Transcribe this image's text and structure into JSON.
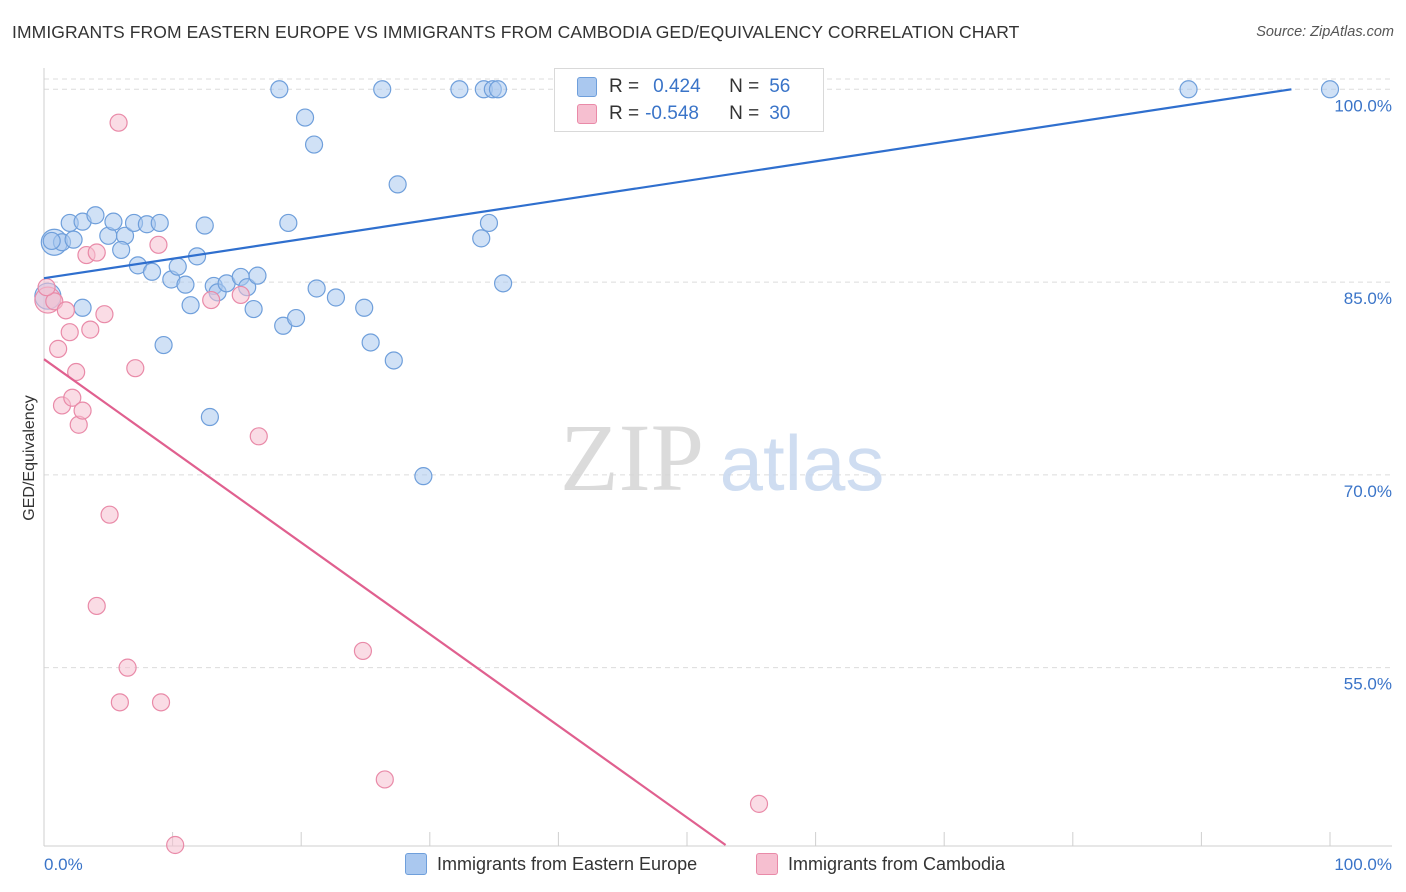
{
  "header": {
    "title": "IMMIGRANTS FROM EASTERN EUROPE VS IMMIGRANTS FROM CAMBODIA GED/EQUIVALENCY CORRELATION CHART",
    "source": "Source: ZipAtlas.com"
  },
  "watermark": {
    "zip": "ZIP",
    "atlas": "atlas"
  },
  "legend": {
    "rows": [
      {
        "r_label": "R =",
        "r_value": "0.424",
        "n_label": "N =",
        "n_value": "56"
      },
      {
        "r_label": "R =",
        "r_value": "-0.548",
        "n_label": "N =",
        "n_value": "30"
      }
    ]
  },
  "bottom_legend": {
    "series_a": "Immigrants from Eastern Europe",
    "series_b": "Immigrants from Cambodia"
  },
  "colors": {
    "blue_fill": "#aac8ef",
    "blue_stroke": "#6f9fdb",
    "blue_line": "#2f6fce",
    "pink_fill": "#f6bfd0",
    "pink_stroke": "#e98aa8",
    "pink_line": "#e0608f",
    "tick_text": "#3a74c8",
    "grid": "#dcdcdc"
  },
  "chart_data": {
    "type": "scatter",
    "title": "IMMIGRANTS FROM EASTERN EUROPE VS IMMIGRANTS FROM CAMBODIA GED/EQUIVALENCY CORRELATION CHART",
    "xlabel": "",
    "ylabel": "GED/Equivalency",
    "xlim": [
      0,
      100
    ],
    "ylim": [
      41.2,
      101.5
    ],
    "x_tick_labels": [
      {
        "value": 0,
        "label": "0.0%"
      },
      {
        "value": 100,
        "label": "100.0%"
      }
    ],
    "y_tick_labels": [
      {
        "value": 100,
        "label": "100.0%"
      },
      {
        "value": 85,
        "label": "85.0%"
      },
      {
        "value": 70,
        "label": "70.0%"
      },
      {
        "value": 55,
        "label": "55.0%"
      }
    ],
    "legend_position": "top-center",
    "series": [
      {
        "name": "Immigrants from Eastern Europe",
        "R": 0.424,
        "N": 56,
        "trend": {
          "x": [
            0,
            97
          ],
          "y": [
            85.3,
            100.0
          ]
        },
        "points": [
          {
            "x": 0.3,
            "y": 83.9,
            "big": true
          },
          {
            "x": 0.8,
            "y": 88.1,
            "big": true
          },
          {
            "x": 1.4,
            "y": 88.1
          },
          {
            "x": 2.3,
            "y": 88.3
          },
          {
            "x": 3.0,
            "y": 83.0
          },
          {
            "x": 2.0,
            "y": 89.6
          },
          {
            "x": 3.0,
            "y": 89.7
          },
          {
            "x": 4.0,
            "y": 90.2
          },
          {
            "x": 5.0,
            "y": 88.6
          },
          {
            "x": 5.4,
            "y": 89.7
          },
          {
            "x": 6.3,
            "y": 88.6
          },
          {
            "x": 6.0,
            "y": 87.5
          },
          {
            "x": 7.0,
            "y": 89.6
          },
          {
            "x": 8.0,
            "y": 89.5
          },
          {
            "x": 9.0,
            "y": 89.6
          },
          {
            "x": 7.3,
            "y": 86.3
          },
          {
            "x": 8.4,
            "y": 85.8
          },
          {
            "x": 9.9,
            "y": 85.2
          },
          {
            "x": 10.4,
            "y": 86.2
          },
          {
            "x": 11.0,
            "y": 84.8
          },
          {
            "x": 11.4,
            "y": 83.2
          },
          {
            "x": 11.9,
            "y": 87.0
          },
          {
            "x": 12.5,
            "y": 89.4
          },
          {
            "x": 13.2,
            "y": 84.7
          },
          {
            "x": 13.5,
            "y": 84.2
          },
          {
            "x": 14.2,
            "y": 84.9
          },
          {
            "x": 15.3,
            "y": 85.4
          },
          {
            "x": 15.8,
            "y": 84.6
          },
          {
            "x": 16.3,
            "y": 82.9
          },
          {
            "x": 16.6,
            "y": 85.5
          },
          {
            "x": 9.3,
            "y": 80.1
          },
          {
            "x": 12.9,
            "y": 74.5
          },
          {
            "x": 18.3,
            "y": 100.0
          },
          {
            "x": 18.6,
            "y": 81.6
          },
          {
            "x": 19.0,
            "y": 89.6
          },
          {
            "x": 19.6,
            "y": 82.2
          },
          {
            "x": 20.3,
            "y": 97.8
          },
          {
            "x": 21.0,
            "y": 95.7
          },
          {
            "x": 21.2,
            "y": 84.5
          },
          {
            "x": 22.7,
            "y": 83.8
          },
          {
            "x": 24.9,
            "y": 83.0
          },
          {
            "x": 25.4,
            "y": 80.3
          },
          {
            "x": 26.3,
            "y": 100.0
          },
          {
            "x": 27.2,
            "y": 78.9
          },
          {
            "x": 27.5,
            "y": 92.6
          },
          {
            "x": 29.5,
            "y": 69.9
          },
          {
            "x": 32.3,
            "y": 100.0
          },
          {
            "x": 34.0,
            "y": 88.4
          },
          {
            "x": 34.6,
            "y": 89.6
          },
          {
            "x": 34.2,
            "y": 100.0
          },
          {
            "x": 34.9,
            "y": 100.0
          },
          {
            "x": 35.3,
            "y": 100.0
          },
          {
            "x": 35.7,
            "y": 84.9
          },
          {
            "x": 89.0,
            "y": 100.0
          },
          {
            "x": 100.0,
            "y": 100.0
          },
          {
            "x": 0.6,
            "y": 88.2
          }
        ]
      },
      {
        "name": "Immigrants from Cambodia",
        "R": -0.548,
        "N": 30,
        "trend": {
          "x": [
            0,
            53
          ],
          "y": [
            79.0,
            41.2
          ]
        },
        "points": [
          {
            "x": 0.3,
            "y": 83.6,
            "big": true
          },
          {
            "x": 0.8,
            "y": 83.5
          },
          {
            "x": 1.1,
            "y": 79.8
          },
          {
            "x": 1.4,
            "y": 75.4
          },
          {
            "x": 1.7,
            "y": 82.8
          },
          {
            "x": 2.0,
            "y": 81.1
          },
          {
            "x": 2.2,
            "y": 76.0
          },
          {
            "x": 2.5,
            "y": 78.0
          },
          {
            "x": 2.7,
            "y": 73.9
          },
          {
            "x": 3.0,
            "y": 75.0
          },
          {
            "x": 3.3,
            "y": 87.1
          },
          {
            "x": 3.6,
            "y": 81.3
          },
          {
            "x": 4.1,
            "y": 87.3
          },
          {
            "x": 4.7,
            "y": 82.5
          },
          {
            "x": 5.1,
            "y": 66.9
          },
          {
            "x": 4.1,
            "y": 59.8
          },
          {
            "x": 5.8,
            "y": 97.4
          },
          {
            "x": 6.5,
            "y": 55.0
          },
          {
            "x": 5.9,
            "y": 52.3
          },
          {
            "x": 7.1,
            "y": 78.3
          },
          {
            "x": 8.9,
            "y": 87.9
          },
          {
            "x": 9.1,
            "y": 52.3
          },
          {
            "x": 10.2,
            "y": 41.2
          },
          {
            "x": 13.0,
            "y": 83.6
          },
          {
            "x": 15.3,
            "y": 84.0
          },
          {
            "x": 16.7,
            "y": 73.0
          },
          {
            "x": 24.8,
            "y": 56.3
          },
          {
            "x": 26.5,
            "y": 46.3
          },
          {
            "x": 55.6,
            "y": 44.4
          },
          {
            "x": 0.2,
            "y": 84.6
          }
        ]
      }
    ]
  }
}
